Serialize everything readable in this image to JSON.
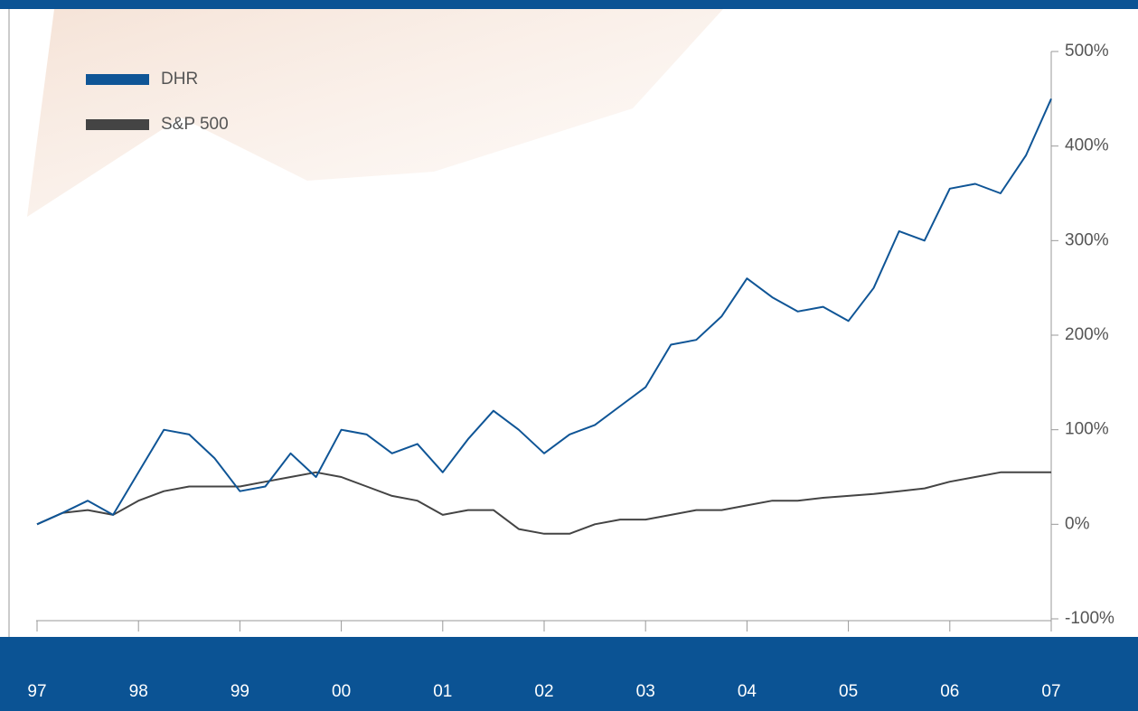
{
  "chart_data": {
    "type": "line",
    "x": [
      1997,
      1997.25,
      1997.5,
      1997.75,
      1998,
      1998.25,
      1998.5,
      1998.75,
      1999,
      1999.25,
      1999.5,
      1999.75,
      2000,
      2000.25,
      2000.5,
      2000.75,
      2001,
      2001.25,
      2001.5,
      2001.75,
      2002,
      2002.25,
      2002.5,
      2002.75,
      2003,
      2003.25,
      2003.5,
      2003.75,
      2004,
      2004.25,
      2004.5,
      2004.75,
      2005,
      2005.25,
      2005.5,
      2005.75,
      2006,
      2006.25,
      2006.5,
      2006.75,
      2007
    ],
    "series": [
      {
        "name": "DHR",
        "color": "#0f5596",
        "values": [
          0,
          12,
          25,
          10,
          55,
          100,
          95,
          70,
          35,
          40,
          75,
          50,
          100,
          95,
          75,
          85,
          55,
          90,
          120,
          100,
          75,
          95,
          105,
          125,
          145,
          190,
          195,
          220,
          260,
          240,
          225,
          230,
          215,
          250,
          310,
          300,
          355,
          360,
          350,
          390,
          450
        ]
      },
      {
        "name": "S&P 500",
        "color": "#444444",
        "values": [
          0,
          12,
          15,
          10,
          25,
          35,
          40,
          40,
          40,
          45,
          50,
          55,
          50,
          40,
          30,
          25,
          10,
          15,
          15,
          -5,
          -10,
          -10,
          0,
          5,
          5,
          10,
          15,
          15,
          20,
          25,
          25,
          28,
          30,
          32,
          35,
          38,
          45,
          50,
          55,
          55,
          55
        ]
      }
    ],
    "xlim": [
      1997,
      2007
    ],
    "xticks": [
      {
        "value": 1997,
        "label": "97"
      },
      {
        "value": 1998,
        "label": "98"
      },
      {
        "value": 1999,
        "label": "99"
      },
      {
        "value": 2000,
        "label": "00"
      },
      {
        "value": 2001,
        "label": "01"
      },
      {
        "value": 2002,
        "label": "02"
      },
      {
        "value": 2003,
        "label": "03"
      },
      {
        "value": 2004,
        "label": "04"
      },
      {
        "value": 2005,
        "label": "05"
      },
      {
        "value": 2006,
        "label": "06"
      },
      {
        "value": 2007,
        "label": "07"
      }
    ],
    "ylim": [
      -100,
      500
    ],
    "yticks": [
      {
        "value": -100,
        "label": "-100%"
      },
      {
        "value": 0,
        "label": "0%"
      },
      {
        "value": 100,
        "label": "100%"
      },
      {
        "value": 200,
        "label": "200%"
      },
      {
        "value": 300,
        "label": "300%"
      },
      {
        "value": 400,
        "label": "400%"
      },
      {
        "value": 500,
        "label": "500%"
      }
    ],
    "legend": "top-left"
  }
}
